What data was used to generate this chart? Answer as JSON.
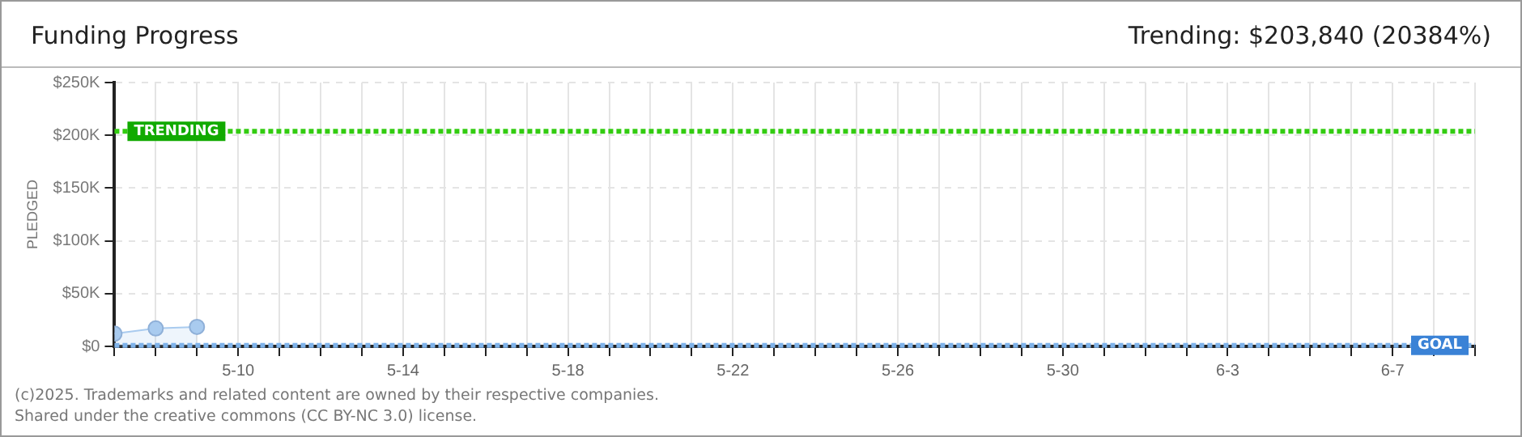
{
  "chart_data": {
    "type": "area",
    "title": "Funding Progress",
    "subtitle": "Trending: $203,840 (20384%)",
    "ylabel": "PLEDGED",
    "x": [
      "--05-07",
      "--05-08",
      "--05-09"
    ],
    "series": [
      {
        "color": "#a9cbef",
        "values": [
          12000,
          17000,
          18500
        ]
      }
    ],
    "xlim": [
      "--05-07",
      "--06-09"
    ],
    "xticks": [
      {
        "value": "--05-07",
        "label": null
      },
      {
        "value": "--05-08",
        "label": null
      },
      {
        "value": "--05-09",
        "label": null
      },
      {
        "value": "--05-10",
        "label": "5-10"
      },
      {
        "value": "--05-11",
        "label": null
      },
      {
        "value": "--05-12",
        "label": null
      },
      {
        "value": "--05-13",
        "label": null
      },
      {
        "value": "--05-14",
        "label": "5-14"
      },
      {
        "value": "--05-15",
        "label": null
      },
      {
        "value": "--05-16",
        "label": null
      },
      {
        "value": "--05-17",
        "label": null
      },
      {
        "value": "--05-18",
        "label": "5-18"
      },
      {
        "value": "--05-19",
        "label": null
      },
      {
        "value": "--05-20",
        "label": null
      },
      {
        "value": "--05-21",
        "label": null
      },
      {
        "value": "--05-22",
        "label": "5-22"
      },
      {
        "value": "--05-23",
        "label": null
      },
      {
        "value": "--05-24",
        "label": null
      },
      {
        "value": "--05-25",
        "label": null
      },
      {
        "value": "--05-26",
        "label": "5-26"
      },
      {
        "value": "--05-27",
        "label": null
      },
      {
        "value": "--05-28",
        "label": null
      },
      {
        "value": "--05-29",
        "label": null
      },
      {
        "value": "--05-30",
        "label": "5-30"
      },
      {
        "value": "--05-31",
        "label": null
      },
      {
        "value": "--06-01",
        "label": null
      },
      {
        "value": "--06-02",
        "label": null
      },
      {
        "value": "--06-03",
        "label": "6-3"
      },
      {
        "value": "--06-04",
        "label": null
      },
      {
        "value": "--06-05",
        "label": null
      },
      {
        "value": "--06-06",
        "label": null
      },
      {
        "value": "--06-07",
        "label": "6-7"
      },
      {
        "value": "--06-08",
        "label": null
      },
      {
        "value": "--06-09",
        "label": null
      }
    ],
    "ylim": [
      0,
      250000
    ],
    "yticks": [
      {
        "value": 0,
        "label": "$0"
      },
      {
        "value": 50000,
        "label": "$50K"
      },
      {
        "value": 100000,
        "label": "$100K"
      },
      {
        "value": 150000,
        "label": "$150K"
      },
      {
        "value": 200000,
        "label": "$200K"
      },
      {
        "value": 250000,
        "label": "$250K"
      }
    ],
    "ref_lines": [
      {
        "axis": "y",
        "value": 203840,
        "label": "TRENDING",
        "color": "#33cc11",
        "line_style": "dotted"
      },
      {
        "axis": "y",
        "value": 1000,
        "label": "GOAL",
        "color": "#7fb3ea",
        "line_style": "dotted"
      }
    ],
    "grid": true,
    "marker": "circle",
    "annotations": [
      "(c)2025. Trademarks and related content are owned by their respective companies.",
      "Shared under the creative commons (CC BY-NC 3.0) license."
    ]
  }
}
